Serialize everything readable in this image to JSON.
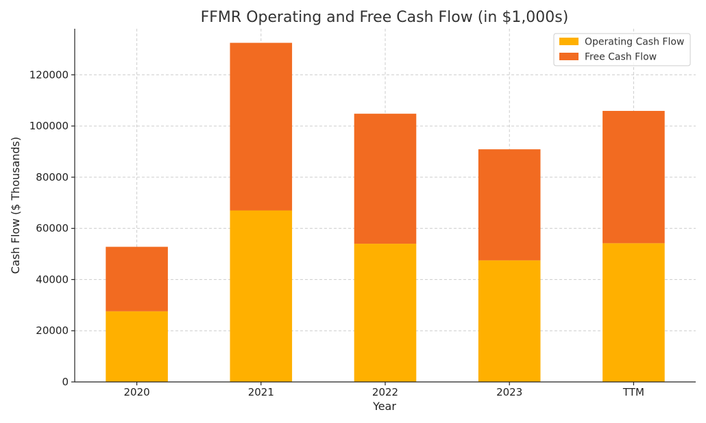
{
  "chart_data": {
    "type": "bar",
    "stacked": true,
    "title": "FFMR Operating and Free Cash Flow (in $1,000s)",
    "xlabel": "Year",
    "ylabel": "Cash Flow ($ Thousands)",
    "categories": [
      "2020",
      "2021",
      "2022",
      "2023",
      "TTM"
    ],
    "series": [
      {
        "name": "Operating Cash Flow",
        "color": "#FFB000",
        "values": [
          27600,
          67000,
          54000,
          47500,
          54200
        ]
      },
      {
        "name": "Free Cash Flow",
        "color": "#F26B21",
        "values": [
          25200,
          65500,
          50800,
          43400,
          51700
        ]
      }
    ],
    "ylim": [
      0,
      138000
    ],
    "yticks": [
      0,
      20000,
      40000,
      60000,
      80000,
      100000,
      120000
    ],
    "grid": true,
    "legend_position": "top-right"
  }
}
